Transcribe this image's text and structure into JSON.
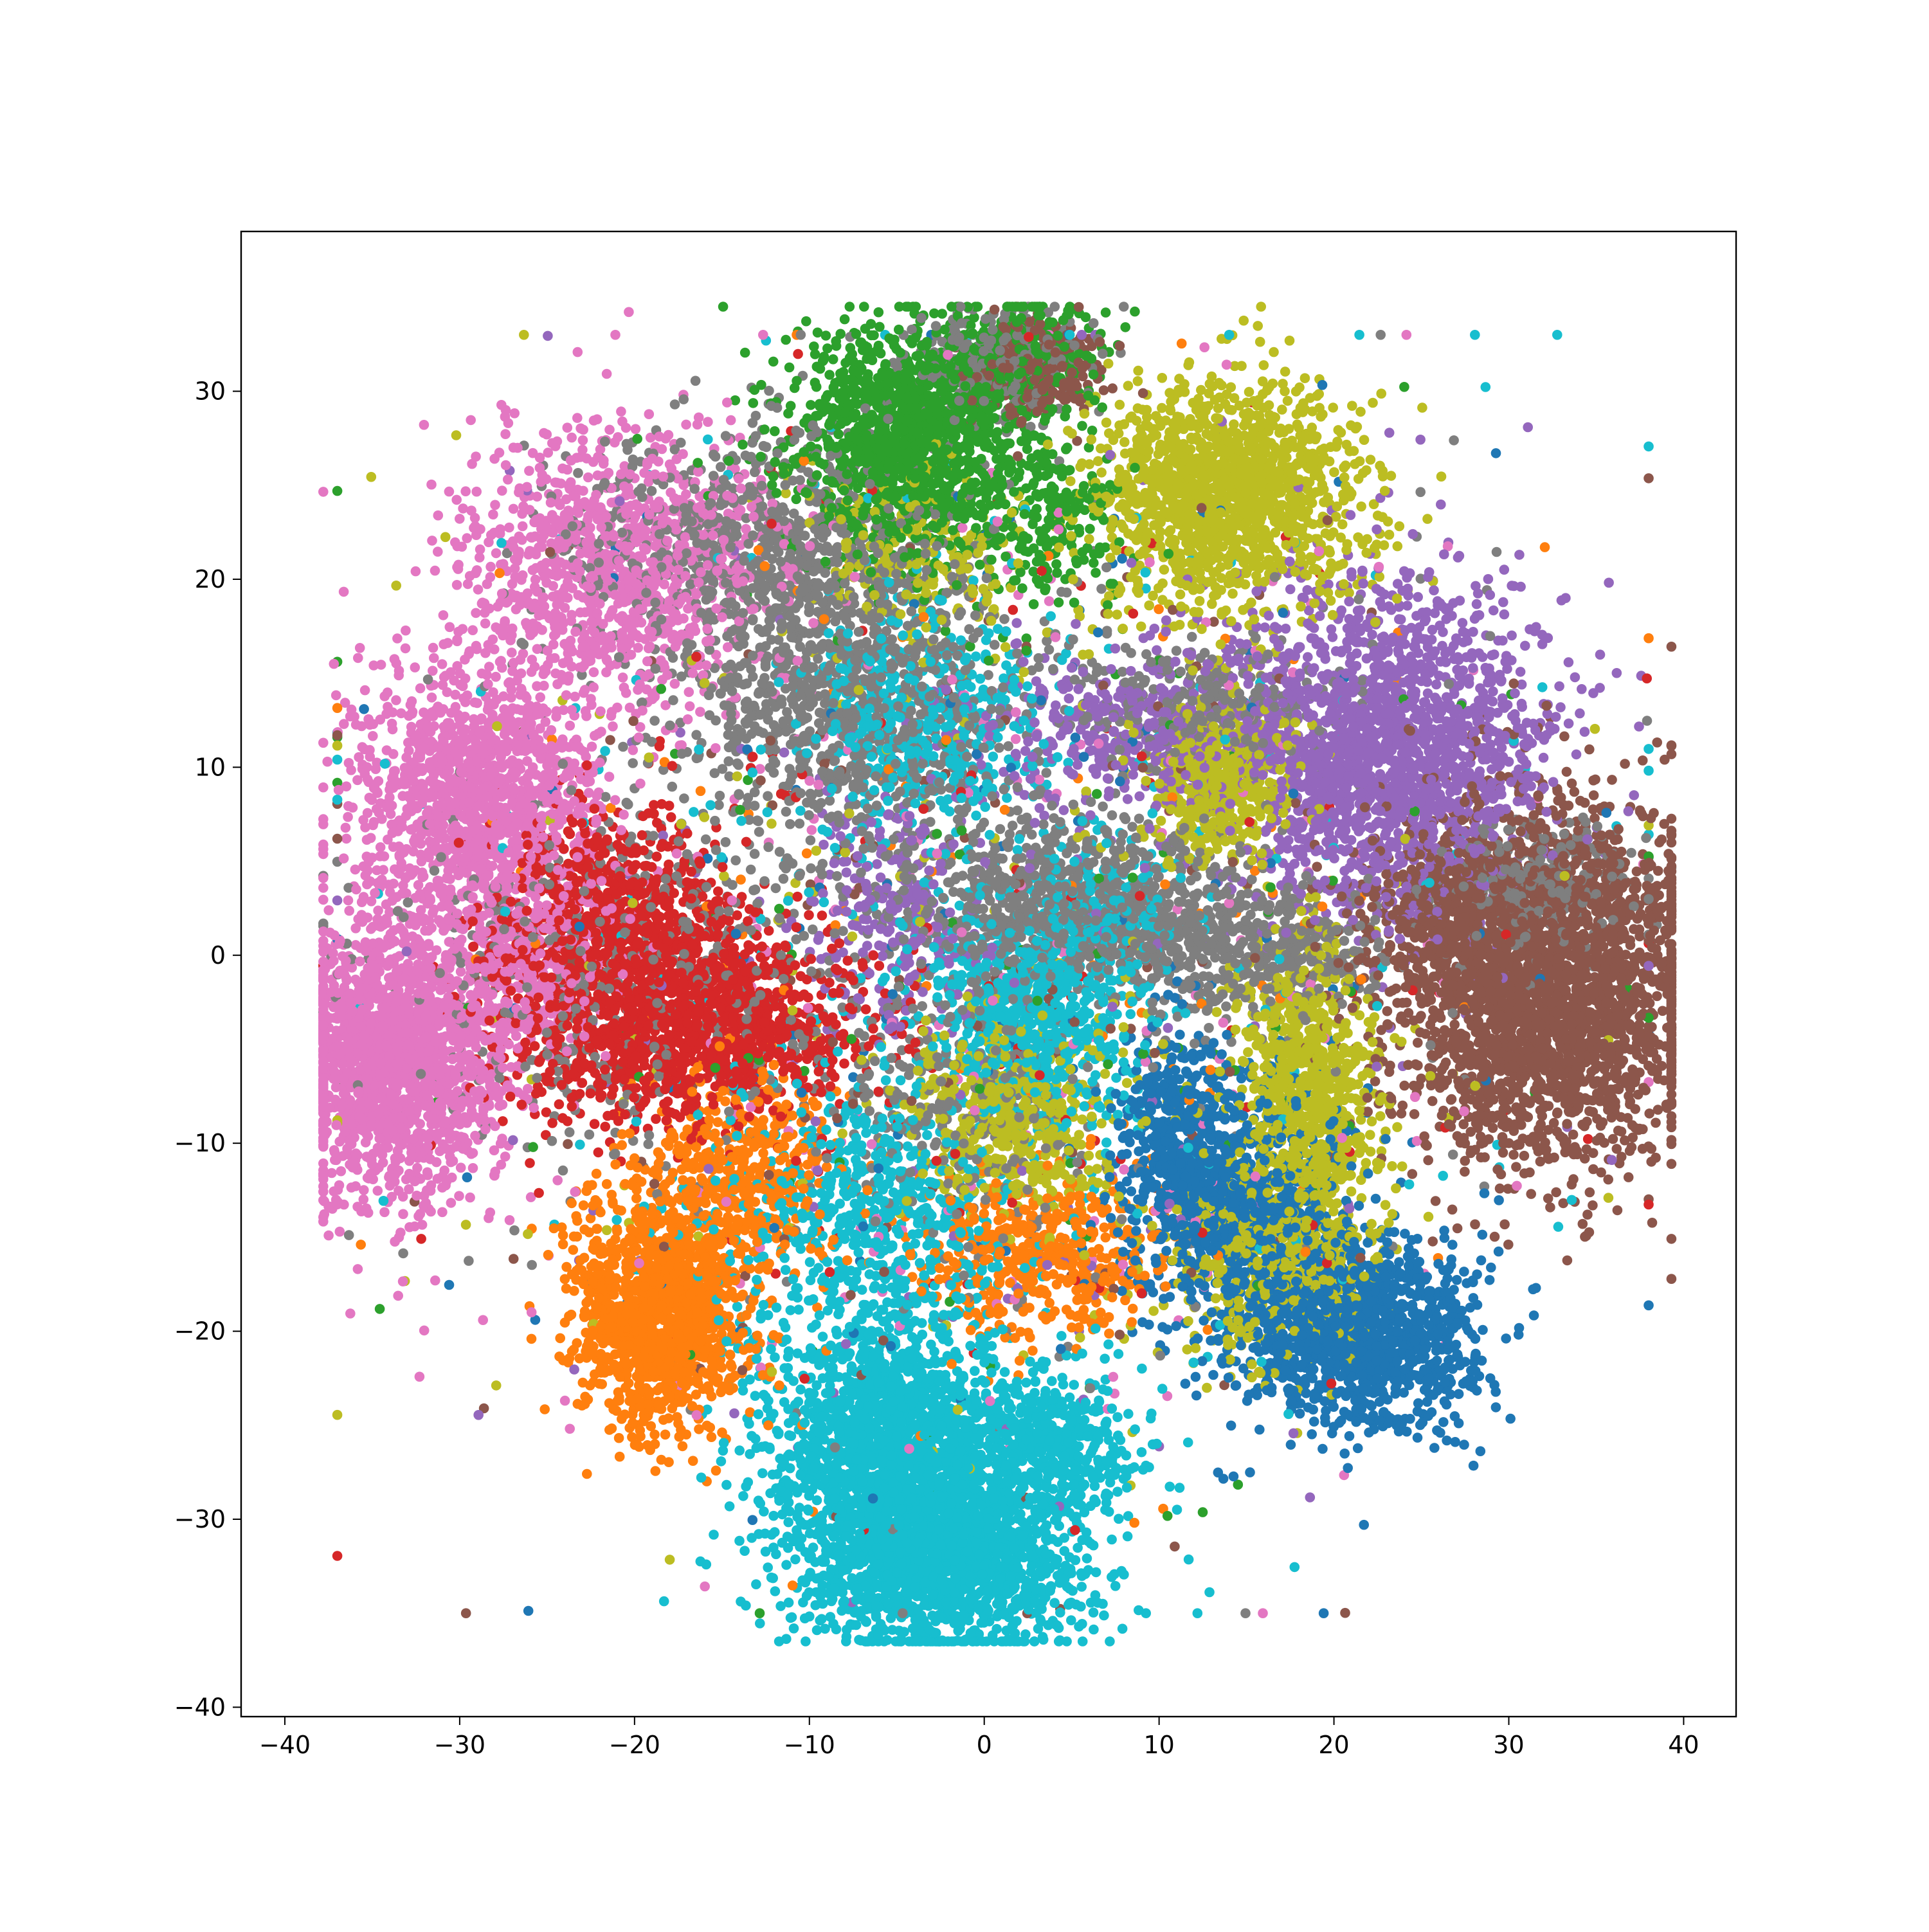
{
  "chart_data": {
    "type": "scatter",
    "title": "",
    "xlabel": "",
    "ylabel": "",
    "xlim": [
      -42.5,
      43
    ],
    "ylim": [
      -40.5,
      38.5
    ],
    "grid": false,
    "legend": null,
    "x_ticks": [
      -40,
      -30,
      -20,
      -10,
      0,
      10,
      20,
      30,
      40
    ],
    "y_ticks": [
      -40,
      -30,
      -20,
      -10,
      0,
      10,
      20,
      30
    ],
    "x_tick_labels": [
      "−40",
      "−30",
      "−20",
      "−10",
      "0",
      "10",
      "20",
      "30",
      "40"
    ],
    "y_tick_labels": [
      "−40",
      "−30",
      "−20",
      "−10",
      "0",
      "10",
      "20",
      "30"
    ],
    "marker_size": 3,
    "noise_fraction": 0.06,
    "clusters": [
      {
        "class": 0,
        "color": "#1f77b4",
        "blobs": [
          [
            21.5,
            -20.0,
            3.2,
            2.5,
            1300
          ],
          [
            14.5,
            -13.5,
            3.0,
            3.5,
            900
          ],
          [
            11.0,
            -9.0,
            1.6,
            2.6,
            350
          ]
        ]
      },
      {
        "class": 1,
        "color": "#ff7f0e",
        "blobs": [
          [
            -18.5,
            -19.0,
            2.4,
            3.2,
            1300
          ],
          [
            -14.0,
            -11.5,
            2.8,
            2.8,
            450
          ],
          [
            3.0,
            -16.0,
            3.5,
            2.2,
            450
          ]
        ]
      },
      {
        "class": 2,
        "color": "#2ca02c",
        "blobs": [
          [
            -4.5,
            27.5,
            3.4,
            3.2,
            1300
          ],
          [
            1.5,
            31.5,
            2.2,
            1.6,
            350
          ],
          [
            4.0,
            23.0,
            2.0,
            2.0,
            200
          ]
        ]
      },
      {
        "class": 3,
        "color": "#d62728",
        "blobs": [
          [
            -17.5,
            -3.5,
            5.0,
            2.6,
            1400
          ],
          [
            -21.5,
            2.5,
            3.4,
            2.6,
            650
          ]
        ]
      },
      {
        "class": 4,
        "color": "#9467bd",
        "blobs": [
          [
            23.0,
            11.0,
            4.6,
            4.4,
            1900
          ],
          [
            10.0,
            12.0,
            5.5,
            2.2,
            500
          ],
          [
            -5.0,
            2.0,
            2.5,
            3.0,
            250
          ]
        ]
      },
      {
        "class": 5,
        "color": "#8c564b",
        "blobs": [
          [
            32.0,
            -1.5,
            4.5,
            4.8,
            2700
          ],
          [
            27.0,
            2.0,
            2.5,
            2.0,
            300
          ],
          [
            3.0,
            31.0,
            1.8,
            1.3,
            250
          ]
        ]
      },
      {
        "class": 6,
        "color": "#e377c2",
        "blobs": [
          [
            -33.5,
            -5.0,
            3.2,
            4.0,
            1800
          ],
          [
            -29.0,
            8.5,
            3.4,
            3.4,
            1300
          ],
          [
            -21.0,
            20.5,
            4.5,
            3.8,
            1100
          ],
          [
            -26.0,
            0.0,
            2.5,
            2.5,
            300
          ]
        ]
      },
      {
        "class": 7,
        "color": "#7f7f7f",
        "blobs": [
          [
            -7.5,
            13.5,
            5.0,
            4.0,
            900
          ],
          [
            -12.5,
            21.5,
            5.5,
            3.5,
            800
          ],
          [
            5.5,
            2.5,
            5.0,
            2.2,
            900
          ],
          [
            15.0,
            0.0,
            4.0,
            1.6,
            400
          ],
          [
            31.5,
            4.0,
            2.5,
            1.6,
            300
          ],
          [
            1.0,
            31.5,
            2.5,
            1.4,
            300
          ],
          [
            -2.0,
            -8.0,
            3.5,
            3.5,
            250
          ],
          [
            -21.0,
            -1.0,
            7.0,
            5.0,
            450
          ],
          [
            12.5,
            13.5,
            4.0,
            1.5,
            250
          ]
        ]
      },
      {
        "class": 8,
        "color": "#bcbd22",
        "blobs": [
          [
            14.0,
            24.5,
            3.8,
            3.0,
            1400
          ],
          [
            13.5,
            9.5,
            2.0,
            2.0,
            550
          ],
          [
            18.5,
            -7.5,
            2.0,
            3.8,
            800
          ],
          [
            1.5,
            -8.5,
            3.0,
            2.5,
            500
          ],
          [
            17.0,
            -16.0,
            3.0,
            2.8,
            500
          ],
          [
            -4.0,
            21.0,
            3.0,
            2.5,
            200
          ]
        ]
      },
      {
        "class": 9,
        "color": "#17becf",
        "blobs": [
          [
            -2.5,
            -32.0,
            4.0,
            2.4,
            1700
          ],
          [
            -5.5,
            -25.5,
            3.4,
            3.0,
            1400
          ],
          [
            3.5,
            -26.0,
            2.8,
            2.0,
            500
          ],
          [
            -3.5,
            12.5,
            3.5,
            3.0,
            450
          ],
          [
            2.5,
            -3.0,
            3.0,
            3.0,
            700
          ],
          [
            -6.5,
            -14.0,
            4.5,
            3.5,
            600
          ],
          [
            7.0,
            2.5,
            2.5,
            2.0,
            200
          ]
        ]
      }
    ]
  }
}
